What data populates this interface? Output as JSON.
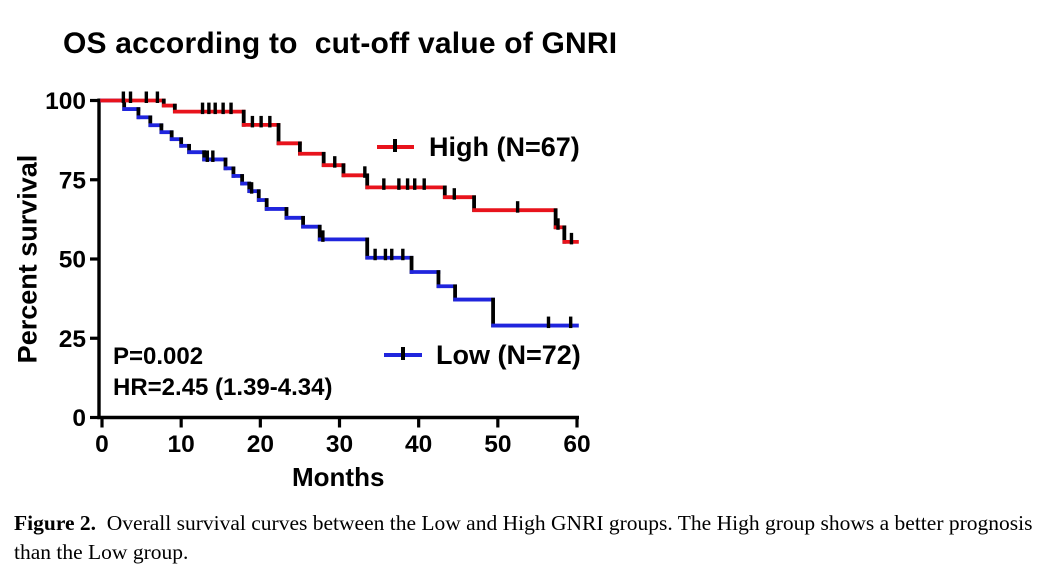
{
  "figure": {
    "title": "OS according to  cut-off value of GNRI",
    "y_axis_label": "Percent survival",
    "x_axis_label": "Months",
    "stats": {
      "p_value": "P=0.002",
      "hazard_ratio": "HR=2.45 (1.39-4.34)"
    },
    "legend": {
      "high_label": "High (N=67)",
      "low_label": "Low (N=72)"
    }
  },
  "caption": {
    "label": "Figure 2.",
    "text": "Overall survival curves between the Low and High GNRI groups. The High group shows a better prognosis than the Low group."
  },
  "colors": {
    "high": "#e8131c",
    "low": "#2025dd",
    "axis": "#000000",
    "censor": "#000000",
    "background": "#ffffff"
  },
  "chart_data": {
    "type": "line",
    "subtype": "kaplan-meier-step",
    "title": "OS according to  cut-off value of GNRI",
    "xlabel": "Months",
    "ylabel": "Percent survival",
    "xlim": [
      0,
      60
    ],
    "ylim": [
      0,
      100
    ],
    "x_ticks": [
      0,
      10,
      20,
      30,
      40,
      50,
      60
    ],
    "y_ticks": [
      100,
      75,
      50,
      25,
      0
    ],
    "grid": false,
    "legend_position": "inside",
    "annotations": [
      "P=0.002",
      "HR=2.45 (1.39-4.34)"
    ],
    "series": [
      {
        "name": "Low (N=72)",
        "n": 72,
        "color": "#2025dd",
        "steps": [
          [
            0,
            100
          ],
          [
            2.8,
            97.3
          ],
          [
            4.6,
            94.7
          ],
          [
            6.1,
            92.2
          ],
          [
            7.5,
            90
          ],
          [
            8.8,
            87.8
          ],
          [
            10,
            85.7
          ],
          [
            11,
            83.7
          ],
          [
            12.9,
            81.4
          ],
          [
            15.6,
            78.6
          ],
          [
            16.6,
            76.2
          ],
          [
            17.7,
            73.8
          ],
          [
            18.6,
            71.4
          ],
          [
            19.8,
            68.6
          ],
          [
            20.8,
            65.8
          ],
          [
            23.3,
            63
          ],
          [
            25.4,
            60.2
          ],
          [
            27.5,
            56.2
          ],
          [
            33.5,
            50.4
          ],
          [
            39.1,
            45.9
          ],
          [
            42.5,
            41.4
          ],
          [
            44.6,
            37.2
          ],
          [
            49.4,
            29
          ],
          [
            60,
            29
          ]
        ],
        "censor_marks": [
          [
            13.3,
            81.4
          ],
          [
            14,
            81.4
          ],
          [
            18.9,
            71.4
          ],
          [
            27.9,
            56.2
          ],
          [
            34.5,
            50.4
          ],
          [
            35.8,
            50.4
          ],
          [
            36.6,
            50.4
          ],
          [
            38,
            50.4
          ],
          [
            56.4,
            29
          ],
          [
            59.2,
            29
          ]
        ]
      },
      {
        "name": "High (N=67)",
        "n": 67,
        "color": "#e8131c",
        "steps": [
          [
            0,
            100
          ],
          [
            7.8,
            98.4
          ],
          [
            9.2,
            96.5
          ],
          [
            17.9,
            92.3
          ],
          [
            22.3,
            86.5
          ],
          [
            25,
            83.2
          ],
          [
            28,
            79.6
          ],
          [
            30.5,
            76.4
          ],
          [
            33.5,
            72.6
          ],
          [
            43.3,
            69.5
          ],
          [
            47,
            65.4
          ],
          [
            57.3,
            60
          ],
          [
            58.4,
            55.4
          ],
          [
            60,
            55.4
          ]
        ],
        "censor_marks": [
          [
            2.7,
            100
          ],
          [
            3.6,
            100
          ],
          [
            5.6,
            100
          ],
          [
            7,
            100
          ],
          [
            12.7,
            96.5
          ],
          [
            13.5,
            96.5
          ],
          [
            14.3,
            96.5
          ],
          [
            15.3,
            96.5
          ],
          [
            16.3,
            96.5
          ],
          [
            19,
            92.3
          ],
          [
            20.1,
            92.3
          ],
          [
            21.2,
            92.3
          ],
          [
            29.4,
            79.6
          ],
          [
            33.2,
            76.4
          ],
          [
            35.6,
            72.6
          ],
          [
            37.5,
            72.6
          ],
          [
            38.6,
            72.6
          ],
          [
            39.5,
            72.6
          ],
          [
            40.7,
            72.6
          ],
          [
            44.5,
            69.5
          ],
          [
            52.5,
            65.4
          ],
          [
            57.6,
            60
          ],
          [
            59.3,
            55.4
          ]
        ]
      }
    ]
  }
}
